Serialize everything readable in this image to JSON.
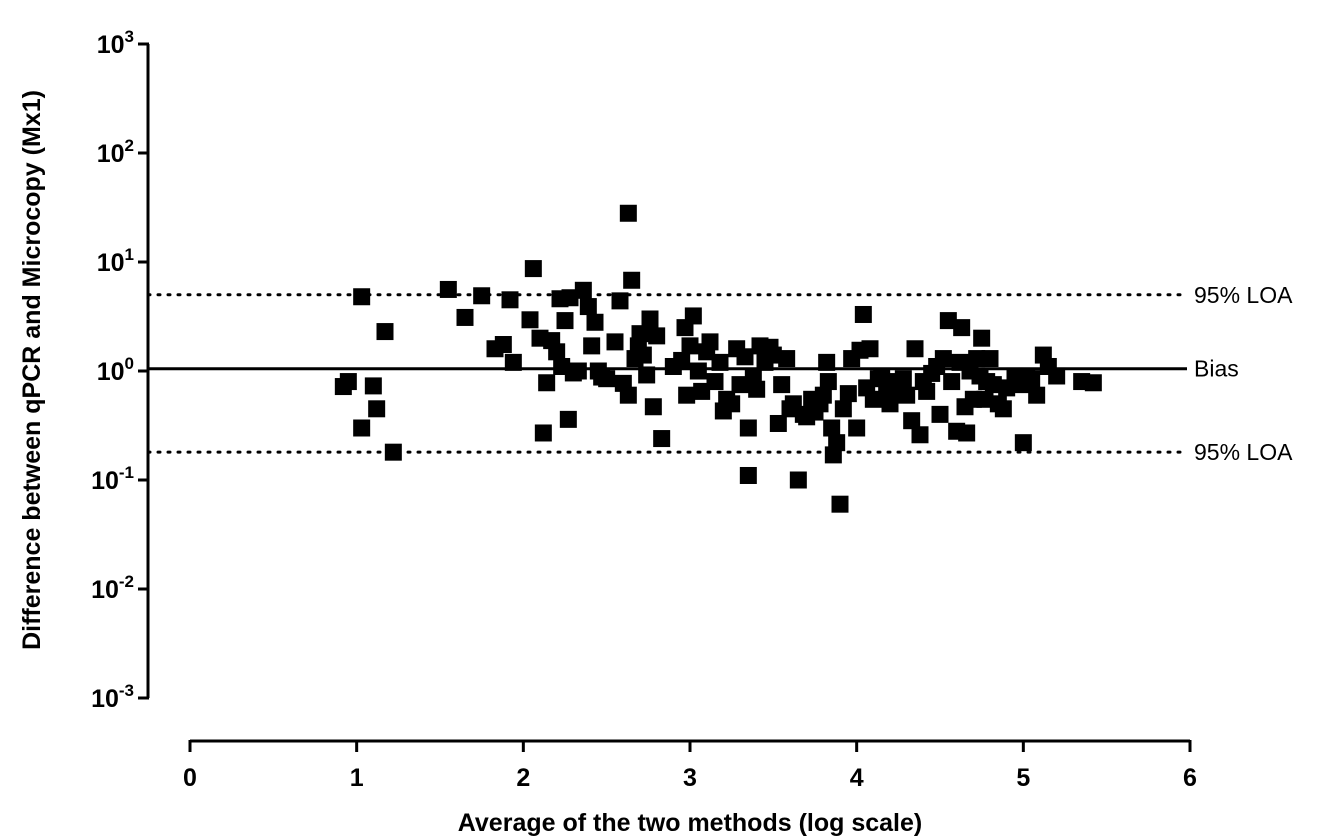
{
  "chart_data": {
    "type": "scatter",
    "title": "",
    "xlabel": "Average of the two methods (log scale)",
    "ylabel": "Difference between qPCR and Microcopy (Mx1)",
    "xlim": [
      0,
      6
    ],
    "ylim": [
      0.001,
      1000
    ],
    "y_scale": "log",
    "grid": false,
    "x_ticks": [
      "0",
      "1",
      "2",
      "3",
      "4",
      "5",
      "6"
    ],
    "x_tick_values": [
      0,
      1,
      2,
      3,
      4,
      5,
      6
    ],
    "y_ticks": [
      {
        "base": "10",
        "exp": "3",
        "value": 1000
      },
      {
        "base": "10",
        "exp": "2",
        "value": 100
      },
      {
        "base": "10",
        "exp": "1",
        "value": 10
      },
      {
        "base": "10",
        "exp": "0",
        "value": 1
      },
      {
        "base": "10",
        "exp": "-1",
        "value": 0.1
      },
      {
        "base": "10",
        "exp": "-2",
        "value": 0.01
      },
      {
        "base": "10",
        "exp": "-3",
        "value": 0.001
      }
    ],
    "reference_lines": [
      {
        "label": "95% LOA",
        "value": 5.0,
        "style": "dotted"
      },
      {
        "label": "Bias",
        "value": 1.05,
        "style": "solid"
      },
      {
        "label": "95% LOA",
        "value": 0.18,
        "style": "dotted"
      }
    ],
    "series": [
      {
        "points": [
          [
            0.92,
            0.72
          ],
          [
            0.95,
            0.8
          ],
          [
            1.03,
            4.8
          ],
          [
            1.03,
            0.3
          ],
          [
            1.1,
            0.73
          ],
          [
            1.12,
            0.45
          ],
          [
            1.17,
            2.3
          ],
          [
            1.22,
            0.18
          ],
          [
            1.55,
            5.6
          ],
          [
            1.65,
            3.1
          ],
          [
            1.75,
            4.9
          ],
          [
            1.83,
            1.6
          ],
          [
            1.88,
            1.75
          ],
          [
            1.92,
            4.5
          ],
          [
            1.94,
            1.2
          ],
          [
            2.04,
            2.95
          ],
          [
            2.06,
            8.7
          ],
          [
            2.1,
            2.0
          ],
          [
            2.12,
            0.27
          ],
          [
            2.14,
            0.78
          ],
          [
            2.17,
            1.9
          ],
          [
            2.2,
            1.5
          ],
          [
            2.22,
            4.6
          ],
          [
            2.23,
            1.1
          ],
          [
            2.25,
            2.9
          ],
          [
            2.27,
            0.36
          ],
          [
            2.28,
            4.7
          ],
          [
            2.3,
            0.96
          ],
          [
            2.33,
            1.0
          ],
          [
            2.36,
            5.5
          ],
          [
            2.39,
            3.9
          ],
          [
            2.41,
            1.7
          ],
          [
            2.43,
            2.8
          ],
          [
            2.45,
            1.0
          ],
          [
            2.47,
            0.88
          ],
          [
            2.5,
            0.85
          ],
          [
            2.55,
            1.85
          ],
          [
            2.58,
            4.4
          ],
          [
            2.6,
            0.77
          ],
          [
            2.63,
            28.0
          ],
          [
            2.65,
            6.8
          ],
          [
            2.63,
            0.6
          ],
          [
            2.67,
            1.3
          ],
          [
            2.69,
            1.7
          ],
          [
            2.7,
            2.2
          ],
          [
            2.72,
            1.4
          ],
          [
            2.74,
            0.92
          ],
          [
            2.76,
            3.0
          ],
          [
            2.78,
            0.47
          ],
          [
            2.8,
            2.1
          ],
          [
            2.83,
            0.24
          ],
          [
            2.9,
            1.1
          ],
          [
            2.95,
            1.25
          ],
          [
            2.97,
            2.5
          ],
          [
            2.98,
            0.6
          ],
          [
            3.0,
            1.7
          ],
          [
            3.02,
            3.2
          ],
          [
            3.05,
            1.0
          ],
          [
            3.07,
            0.65
          ],
          [
            3.1,
            1.5
          ],
          [
            3.12,
            1.85
          ],
          [
            3.15,
            0.8
          ],
          [
            3.18,
            1.2
          ],
          [
            3.2,
            0.43
          ],
          [
            3.22,
            0.55
          ],
          [
            3.25,
            0.5
          ],
          [
            3.28,
            1.6
          ],
          [
            3.3,
            0.75
          ],
          [
            3.33,
            1.35
          ],
          [
            3.35,
            0.11
          ],
          [
            3.35,
            0.3
          ],
          [
            3.38,
            0.9
          ],
          [
            3.4,
            0.68
          ],
          [
            3.42,
            1.7
          ],
          [
            3.45,
            1.2
          ],
          [
            3.48,
            1.65
          ],
          [
            3.5,
            1.4
          ],
          [
            3.53,
            0.33
          ],
          [
            3.55,
            0.75
          ],
          [
            3.58,
            1.3
          ],
          [
            3.6,
            0.45
          ],
          [
            3.62,
            0.5
          ],
          [
            3.65,
            0.1
          ],
          [
            3.68,
            0.4
          ],
          [
            3.7,
            0.38
          ],
          [
            3.73,
            0.55
          ],
          [
            3.75,
            0.42
          ],
          [
            3.78,
            0.5
          ],
          [
            3.8,
            0.6
          ],
          [
            3.82,
            1.2
          ],
          [
            3.83,
            0.8
          ],
          [
            3.85,
            0.3
          ],
          [
            3.86,
            0.17
          ],
          [
            3.88,
            0.22
          ],
          [
            3.9,
            0.06
          ],
          [
            3.92,
            0.45
          ],
          [
            3.95,
            0.62
          ],
          [
            3.97,
            1.3
          ],
          [
            4.0,
            0.3
          ],
          [
            4.02,
            1.55
          ],
          [
            4.04,
            3.3
          ],
          [
            4.06,
            0.7
          ],
          [
            4.08,
            1.6
          ],
          [
            4.1,
            0.55
          ],
          [
            4.13,
            0.85
          ],
          [
            4.15,
            0.9
          ],
          [
            4.18,
            0.65
          ],
          [
            4.2,
            0.5
          ],
          [
            4.23,
            0.8
          ],
          [
            4.25,
            0.7
          ],
          [
            4.28,
            0.85
          ],
          [
            4.3,
            0.6
          ],
          [
            4.33,
            0.35
          ],
          [
            4.35,
            1.6
          ],
          [
            4.38,
            0.26
          ],
          [
            4.4,
            0.8
          ],
          [
            4.42,
            0.65
          ],
          [
            4.45,
            0.95
          ],
          [
            4.48,
            1.1
          ],
          [
            4.5,
            0.4
          ],
          [
            4.52,
            1.3
          ],
          [
            4.55,
            2.9
          ],
          [
            4.57,
            0.8
          ],
          [
            4.6,
            0.28
          ],
          [
            4.62,
            1.2
          ],
          [
            4.63,
            2.5
          ],
          [
            4.65,
            0.47
          ],
          [
            4.66,
            0.27
          ],
          [
            4.68,
            1.0
          ],
          [
            4.7,
            0.55
          ],
          [
            4.72,
            1.3
          ],
          [
            4.74,
            0.9
          ],
          [
            4.75,
            2.0
          ],
          [
            4.77,
            0.55
          ],
          [
            4.78,
            0.8
          ],
          [
            4.8,
            1.3
          ],
          [
            4.82,
            0.75
          ],
          [
            4.85,
            0.5
          ],
          [
            4.88,
            0.45
          ],
          [
            4.9,
            0.7
          ],
          [
            4.95,
            0.9
          ],
          [
            4.98,
            0.75
          ],
          [
            5.0,
            0.22
          ],
          [
            5.02,
            0.9
          ],
          [
            5.05,
            0.85
          ],
          [
            5.08,
            0.6
          ],
          [
            5.12,
            1.4
          ],
          [
            5.15,
            1.1
          ],
          [
            5.2,
            0.9
          ],
          [
            5.35,
            0.8
          ],
          [
            5.42,
            0.78
          ]
        ]
      }
    ]
  }
}
